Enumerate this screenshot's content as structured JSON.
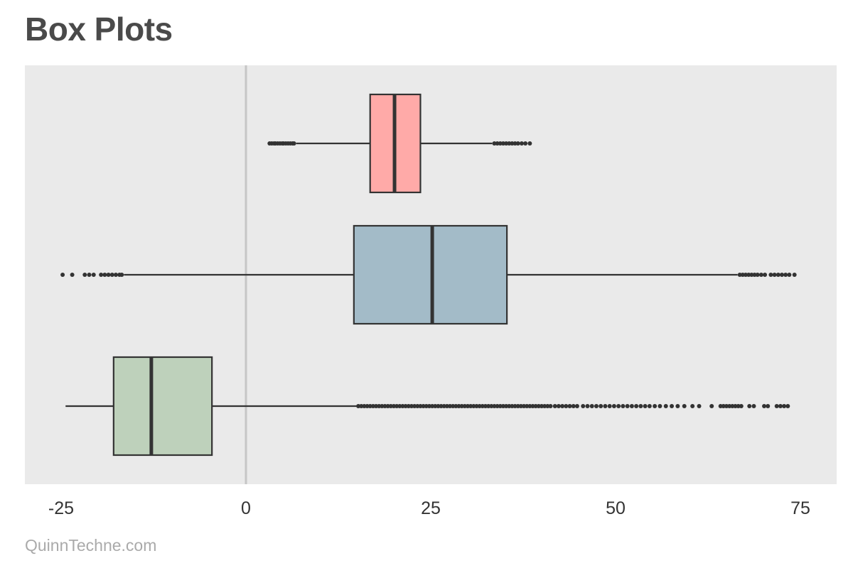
{
  "title": "Box Plots",
  "credit": "QuinnTechne.com",
  "chart_data": {
    "type": "boxplot",
    "orientation": "horizontal",
    "xlim": [
      -30,
      80
    ],
    "ticks": [
      -25,
      0,
      25,
      50,
      75
    ],
    "tick_labels": [
      "-25",
      "0",
      "25",
      "50",
      "75"
    ],
    "reference_line": 0,
    "grid": false,
    "legend": "none",
    "colors": {
      "plot_background": "#eaeaea",
      "box_stroke": "#333333",
      "reference_line": "#c6c6c6"
    },
    "series": [
      {
        "fill": "#ffaaa8",
        "whisker_low": 6.8,
        "q1": 16.8,
        "median": 20.1,
        "q3": 23.6,
        "whisker_high": 33.3,
        "outliers": [
          3.2,
          3.5,
          3.8,
          4.0,
          4.3,
          4.6,
          4.9,
          5.1,
          5.4,
          5.7,
          6.0,
          6.3,
          6.5,
          33.6,
          34.0,
          34.4,
          34.8,
          35.2,
          35.6,
          36.0,
          36.4,
          36.8,
          37.3,
          37.8,
          38.4
        ]
      },
      {
        "fill": "#a3bbc8",
        "whisker_low": -16.5,
        "q1": 14.6,
        "median": 25.2,
        "q3": 35.3,
        "whisker_high": 66.5,
        "outliers": [
          -24.8,
          -23.5,
          -21.8,
          -21.2,
          -20.6,
          -19.6,
          -19.1,
          -18.6,
          -18.1,
          -17.6,
          -17.1,
          -16.8,
          66.8,
          67.2,
          67.6,
          68.0,
          68.4,
          68.8,
          69.2,
          69.7,
          70.2,
          71.0,
          71.5,
          72.0,
          72.5,
          73.0,
          73.5,
          74.2
        ]
      },
      {
        "fill": "#bed1bb",
        "whisker_low": -24.4,
        "q1": -17.9,
        "median": -12.8,
        "q3": -4.6,
        "whisker_high": 15.0,
        "outliers": [
          15.2,
          15.6,
          16.0,
          16.4,
          16.8,
          17.2,
          17.6,
          18.0,
          18.4,
          18.8,
          19.2,
          19.6,
          20.0,
          20.4,
          20.8,
          21.2,
          21.6,
          22.0,
          22.4,
          22.8,
          23.2,
          23.6,
          24.0,
          24.4,
          24.8,
          25.2,
          25.6,
          26.0,
          26.4,
          26.8,
          27.2,
          27.6,
          28.0,
          28.4,
          28.8,
          29.2,
          29.6,
          30.0,
          30.4,
          30.8,
          31.2,
          31.6,
          32.0,
          32.4,
          32.8,
          33.2,
          33.6,
          34.0,
          34.4,
          34.8,
          35.2,
          35.6,
          36.0,
          36.4,
          36.8,
          37.2,
          37.6,
          38.0,
          38.4,
          38.8,
          39.2,
          39.6,
          40.0,
          40.4,
          40.8,
          41.2,
          41.8,
          42.3,
          42.8,
          43.3,
          43.8,
          44.3,
          44.8,
          45.6,
          46.2,
          46.8,
          47.4,
          48.0,
          48.6,
          49.2,
          49.8,
          50.4,
          51.0,
          51.6,
          52.2,
          52.8,
          53.4,
          54.0,
          54.6,
          55.3,
          56.0,
          56.8,
          57.6,
          58.4,
          59.3,
          60.4,
          61.3,
          63.0,
          64.2,
          64.6,
          65.0,
          65.4,
          65.8,
          66.2,
          66.6,
          67.0,
          68.1,
          68.7,
          70.1,
          70.6,
          71.8,
          72.3,
          72.8,
          73.3
        ]
      }
    ]
  }
}
